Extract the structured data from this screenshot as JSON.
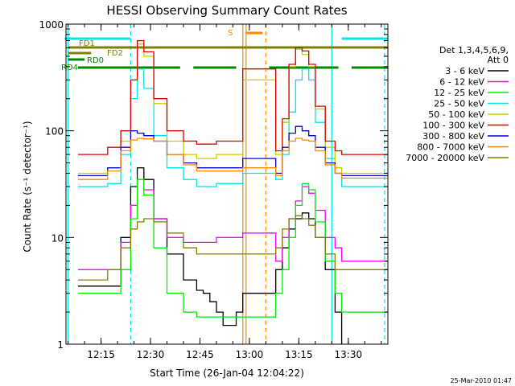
{
  "chart_data": {
    "type": "line",
    "title": "HESSI Observing Summary Count Rates",
    "xlabel": "Start Time (26-Jan-04 12:04:22)",
    "ylabel": "Count Rate (s⁻¹ detector⁻¹)",
    "y_scale": "log",
    "ylim": [
      1,
      1000
    ],
    "xlim": [
      "12:04:22",
      "13:42:00"
    ],
    "x_ticks": [
      "12:15",
      "12:30",
      "12:45",
      "13:00",
      "13:15",
      "13:30"
    ],
    "y_ticks": [
      "1",
      "10",
      "100",
      "1000"
    ],
    "legend_header": [
      "Det 1,3,4,5,6,9,",
      "Att 0"
    ],
    "legend_position": "right",
    "series": [
      {
        "name": "3 - 6 keV",
        "color": "#000000",
        "x": [
          "12:08",
          "12:13",
          "12:17",
          "12:21",
          "12:24",
          "12:26",
          "12:28",
          "12:31",
          "12:35",
          "12:40",
          "12:44",
          "12:46",
          "12:48",
          "12:50",
          "12:52",
          "12:54",
          "12:56",
          "12:58",
          "13:08",
          "13:10",
          "13:12",
          "13:14",
          "13:16",
          "13:18",
          "13:20",
          "13:23",
          "13:26",
          "13:28"
        ],
        "y": [
          3.5,
          3.5,
          3.5,
          10,
          30,
          45,
          35,
          15,
          7,
          4,
          3.2,
          3,
          2.5,
          2,
          1.5,
          1.5,
          2,
          3,
          5,
          8,
          12,
          15,
          17,
          15,
          10,
          5,
          2,
          1
        ]
      },
      {
        "name": "6 - 12 keV",
        "color": "#ff00ff",
        "x": [
          "12:08",
          "12:13",
          "12:17",
          "12:21",
          "12:24",
          "12:26",
          "12:28",
          "12:31",
          "12:35",
          "12:40",
          "12:44",
          "12:50",
          "12:58",
          "13:08",
          "13:10",
          "13:12",
          "13:14",
          "13:16",
          "13:18",
          "13:20",
          "13:23",
          "13:26",
          "13:28",
          "13:34",
          "13:42"
        ],
        "y": [
          5,
          5,
          5,
          9,
          20,
          35,
          28,
          15,
          10,
          9,
          9,
          10,
          11,
          6,
          10,
          15,
          22,
          30,
          26,
          18,
          10,
          8,
          6,
          6,
          6
        ]
      },
      {
        "name": "12 - 25 keV",
        "color": "#00ee00",
        "x": [
          "12:08",
          "12:13",
          "12:17",
          "12:21",
          "12:24",
          "12:26",
          "12:28",
          "12:31",
          "12:35",
          "12:40",
          "12:44",
          "12:50",
          "12:58",
          "13:08",
          "13:10",
          "13:12",
          "13:14",
          "13:16",
          "13:18",
          "13:20",
          "13:23",
          "13:26",
          "13:28",
          "13:34",
          "13:42"
        ],
        "y": [
          3,
          3,
          3,
          5,
          15,
          35,
          25,
          8,
          3,
          2,
          1.8,
          1.8,
          1.8,
          3,
          5,
          10,
          20,
          32,
          28,
          14,
          6,
          3,
          2,
          2,
          2
        ]
      },
      {
        "name": "25 - 50 keV",
        "color": "#00e5e5",
        "x": [
          "12:08",
          "12:13",
          "12:17",
          "12:21",
          "12:24",
          "12:26",
          "12:28",
          "12:31",
          "12:35",
          "12:40",
          "12:44",
          "12:50",
          "12:58",
          "13:08",
          "13:10",
          "13:12",
          "13:14",
          "13:16",
          "13:18",
          "13:20",
          "13:23",
          "13:26",
          "13:28",
          "13:34",
          "13:42"
        ],
        "y": [
          30,
          30,
          32,
          60,
          200,
          380,
          250,
          90,
          45,
          35,
          30,
          32,
          40,
          35,
          60,
          150,
          300,
          380,
          300,
          120,
          55,
          40,
          30,
          30,
          30
        ]
      },
      {
        "name": "50 - 100 keV",
        "color": "#cccc00",
        "x": [
          "12:08",
          "12:13",
          "12:17",
          "12:21",
          "12:24",
          "12:26",
          "12:28",
          "12:31",
          "12:35",
          "12:40",
          "12:44",
          "12:50",
          "12:58",
          "13:08",
          "13:10",
          "13:12",
          "13:14",
          "13:16",
          "13:18",
          "13:20",
          "13:23",
          "13:26",
          "13:28",
          "13:34",
          "13:42"
        ],
        "y": [
          40,
          40,
          45,
          80,
          300,
          650,
          500,
          180,
          80,
          60,
          55,
          60,
          300,
          60,
          120,
          400,
          580,
          520,
          400,
          160,
          70,
          45,
          40,
          40,
          40
        ]
      },
      {
        "name": "100 - 300 keV",
        "color": "#dd0000",
        "x": [
          "12:08",
          "12:13",
          "12:17",
          "12:21",
          "12:24",
          "12:26",
          "12:28",
          "12:31",
          "12:35",
          "12:40",
          "12:44",
          "12:50",
          "12:58",
          "13:08",
          "13:10",
          "13:12",
          "13:14",
          "13:16",
          "13:18",
          "13:20",
          "13:23",
          "13:26",
          "13:28",
          "13:34",
          "13:42"
        ],
        "y": [
          60,
          60,
          70,
          100,
          300,
          700,
          550,
          200,
          100,
          80,
          75,
          80,
          380,
          65,
          130,
          420,
          600,
          560,
          420,
          170,
          80,
          65,
          60,
          60,
          60
        ]
      },
      {
        "name": "300 - 800 keV",
        "color": "#0000dd",
        "x": [
          "12:08",
          "12:13",
          "12:17",
          "12:21",
          "12:24",
          "12:26",
          "12:28",
          "12:31",
          "12:35",
          "12:40",
          "12:44",
          "12:50",
          "12:58",
          "13:08",
          "13:10",
          "13:12",
          "13:14",
          "13:16",
          "13:18",
          "13:20",
          "13:23",
          "13:26",
          "13:28",
          "13:34",
          "13:42"
        ],
        "y": [
          38,
          38,
          45,
          70,
          100,
          95,
          90,
          80,
          60,
          50,
          45,
          45,
          55,
          40,
          70,
          95,
          110,
          100,
          90,
          70,
          50,
          40,
          38,
          38,
          38
        ]
      },
      {
        "name": "800 - 7000 keV",
        "color": "#ff8800",
        "x": [
          "12:08",
          "12:13",
          "12:17",
          "12:21",
          "12:24",
          "12:26",
          "12:28",
          "12:31",
          "12:35",
          "12:40",
          "12:44",
          "12:50",
          "12:58",
          "13:08",
          "13:10",
          "13:12",
          "13:14",
          "13:16",
          "13:18",
          "13:20",
          "13:23",
          "13:26",
          "13:28",
          "13:34",
          "13:42"
        ],
        "y": [
          35,
          35,
          42,
          65,
          82,
          85,
          84,
          80,
          60,
          48,
          42,
          42,
          45,
          38,
          65,
          80,
          85,
          82,
          80,
          65,
          48,
          40,
          36,
          36,
          36
        ]
      },
      {
        "name": "7000 - 20000 keV",
        "color": "#808000",
        "x": [
          "12:08",
          "12:13",
          "12:17",
          "12:21",
          "12:24",
          "12:26",
          "12:28",
          "12:31",
          "12:35",
          "12:40",
          "12:44",
          "12:50",
          "12:58",
          "13:08",
          "13:10",
          "13:12",
          "13:14",
          "13:16",
          "13:18",
          "13:20",
          "13:23",
          "13:26",
          "13:28",
          "13:34",
          "13:42"
        ],
        "y": [
          4,
          4,
          5,
          8,
          12,
          14,
          15,
          14,
          11,
          8,
          7,
          7,
          7,
          8,
          12,
          15,
          16,
          15,
          13,
          10,
          7,
          5,
          5,
          5,
          5
        ]
      }
    ],
    "flag_bars": [
      {
        "label": "S",
        "color": "#ff8800",
        "segments": [
          [
            "12:59",
            "13:04"
          ]
        ]
      },
      {
        "label": "FD1",
        "color": "#808000",
        "segments": [
          [
            "12:05",
            "13:42"
          ]
        ]
      },
      {
        "label": "FD2",
        "color": "#808000",
        "segments": [
          [
            "12:05",
            "12:12"
          ]
        ]
      },
      {
        "label": "RD0",
        "color": "#008800",
        "segments": [
          [
            "12:05",
            "12:10"
          ]
        ]
      },
      {
        "label": "RD4",
        "color": "#008800",
        "segments": [
          [
            "12:08",
            "12:39"
          ],
          [
            "12:43",
            "12:56"
          ],
          [
            "13:06",
            "13:27"
          ],
          [
            "13:31",
            "13:42"
          ]
        ]
      }
    ],
    "cyan_top_segments": [
      [
        "12:04",
        "12:24"
      ],
      [
        "13:28",
        "13:42"
      ]
    ],
    "vertical_markers": [
      {
        "time": "12:05",
        "color": "#00e5e5",
        "style": "solid"
      },
      {
        "time": "12:24",
        "color": "#00e5e5",
        "style": "dashed"
      },
      {
        "time": "12:58",
        "color": "#ff8800",
        "style": "solid"
      },
      {
        "time": "12:59",
        "color": "#ff8800",
        "style": "solid"
      },
      {
        "time": "13:05",
        "color": "#ff8800",
        "style": "dashed"
      },
      {
        "time": "13:25",
        "color": "#00e5e5",
        "style": "solid"
      },
      {
        "time": "13:41",
        "color": "#00e5e5",
        "style": "dashed"
      }
    ],
    "footer_date": "25-Mar-2010 01:47"
  }
}
